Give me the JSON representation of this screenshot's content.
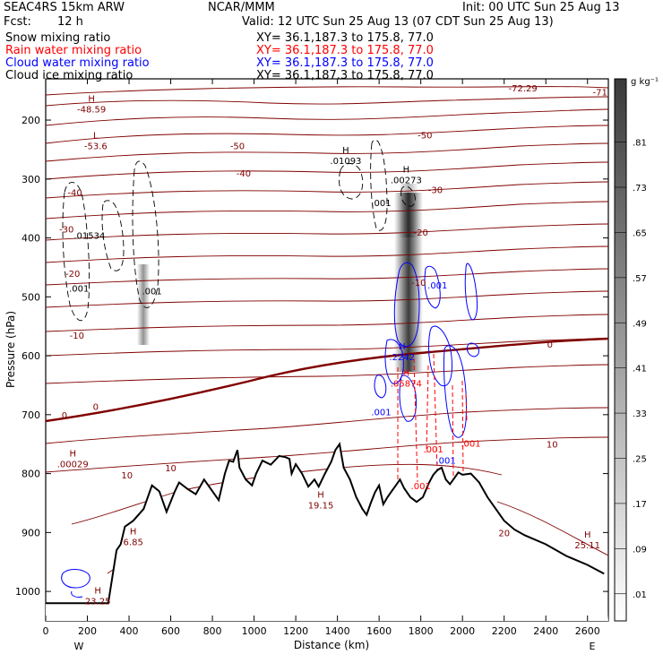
{
  "header": {
    "model": "SEAC4RS 15km ARW",
    "org": "NCAR/MMM",
    "init": "Init: 00 UTC Sun 25 Aug 13",
    "fcst_label": "Fcst:",
    "fcst_value": "12 h",
    "valid": "Valid: 12 UTC Sun 25 Aug 13 (07 CDT Sun 25 Aug 13)"
  },
  "fields": [
    {
      "label": "Snow mixing ratio",
      "xy": "XY=  36.1,187.3 to 175.8, 77.0",
      "color": "#000000"
    },
    {
      "label": "Rain water mixing ratio",
      "xy": "XY=  36.1,187.3 to 175.8, 77.0",
      "color": "#ff0000"
    },
    {
      "label": "Cloud water mixing ratio",
      "xy": "XY=  36.1,187.3 to 175.8, 77.0",
      "color": "#0000ff"
    },
    {
      "label": "Cloud ice mixing ratio",
      "xy": "XY=  36.1,187.3 to 175.8, 77.0",
      "color": "#000000"
    }
  ],
  "colorbar": {
    "unit": "g kg⁻¹",
    "levels": [
      ".01",
      ".09",
      ".17",
      ".25",
      ".33",
      ".41",
      ".49",
      ".57",
      ".65",
      ".73",
      ".81"
    ]
  },
  "chart_data": {
    "type": "contour cross-section",
    "xlabel": "Distance (km)",
    "ylabel": "Pressure (hPa)",
    "xlim": [
      0,
      2700
    ],
    "ylim": [
      1050,
      130
    ],
    "x_ticks": [
      0,
      200,
      400,
      600,
      800,
      1000,
      1200,
      1400,
      1600,
      1800,
      2000,
      2200,
      2400,
      2600
    ],
    "y_ticks": [
      200,
      300,
      400,
      500,
      600,
      700,
      800,
      900,
      1000
    ],
    "end_labels": {
      "left": "W",
      "right": "E"
    },
    "terrain_surface": [
      [
        0,
        1020
      ],
      [
        300,
        1020
      ],
      [
        340,
        930
      ],
      [
        360,
        920
      ],
      [
        380,
        890
      ],
      [
        420,
        880
      ],
      [
        470,
        860
      ],
      [
        510,
        820
      ],
      [
        545,
        830
      ],
      [
        580,
        865
      ],
      [
        620,
        830
      ],
      [
        640,
        815
      ],
      [
        680,
        826
      ],
      [
        720,
        835
      ],
      [
        760,
        810
      ],
      [
        800,
        830
      ],
      [
        830,
        845
      ],
      [
        860,
        800
      ],
      [
        880,
        778
      ],
      [
        900,
        780
      ],
      [
        920,
        760
      ],
      [
        930,
        790
      ],
      [
        960,
        810
      ],
      [
        990,
        820
      ],
      [
        1010,
        800
      ],
      [
        1040,
        778
      ],
      [
        1080,
        785
      ],
      [
        1120,
        770
      ],
      [
        1150,
        772
      ],
      [
        1170,
        775
      ],
      [
        1180,
        800
      ],
      [
        1200,
        784
      ],
      [
        1230,
        800
      ],
      [
        1260,
        822
      ],
      [
        1290,
        810
      ],
      [
        1310,
        822
      ],
      [
        1340,
        800
      ],
      [
        1370,
        780
      ],
      [
        1390,
        760
      ],
      [
        1410,
        750
      ],
      [
        1430,
        790
      ],
      [
        1460,
        810
      ],
      [
        1490,
        840
      ],
      [
        1520,
        860
      ],
      [
        1540,
        870
      ],
      [
        1560,
        850
      ],
      [
        1580,
        832
      ],
      [
        1600,
        820
      ],
      [
        1620,
        852
      ],
      [
        1640,
        840
      ],
      [
        1660,
        830
      ],
      [
        1680,
        820
      ],
      [
        1700,
        810
      ],
      [
        1720,
        825
      ],
      [
        1750,
        840
      ],
      [
        1780,
        848
      ],
      [
        1810,
        840
      ],
      [
        1840,
        815
      ],
      [
        1860,
        802
      ],
      [
        1880,
        794
      ],
      [
        1900,
        790
      ],
      [
        1920,
        810
      ],
      [
        1940,
        818
      ],
      [
        1960,
        808
      ],
      [
        1980,
        798
      ],
      [
        2000,
        802
      ],
      [
        2040,
        800
      ],
      [
        2080,
        815
      ],
      [
        2120,
        840
      ],
      [
        2160,
        860
      ],
      [
        2200,
        880
      ],
      [
        2250,
        895
      ],
      [
        2300,
        905
      ],
      [
        2400,
        920
      ],
      [
        2500,
        940
      ],
      [
        2600,
        955
      ],
      [
        2680,
        970
      ]
    ],
    "temperature_contour_labels": [
      {
        "x": 150,
        "p": 565,
        "text": "-10",
        "color": "#800000"
      },
      {
        "x": 130,
        "p": 460,
        "text": "-20",
        "color": "#800000"
      },
      {
        "x": 100,
        "p": 385,
        "text": "-30",
        "color": "#800000"
      },
      {
        "x": 140,
        "p": 322,
        "text": "-40",
        "color": "#800000"
      },
      {
        "x": 950,
        "p": 290,
        "text": "-40",
        "color": "#800000"
      },
      {
        "x": 920,
        "p": 243,
        "text": "-50",
        "color": "#800000"
      },
      {
        "x": 1820,
        "p": 225,
        "text": "-50",
        "color": "#800000"
      },
      {
        "x": 1870,
        "p": 318,
        "text": "-30",
        "color": "#800000"
      },
      {
        "x": 1800,
        "p": 390,
        "text": "-20",
        "color": "#800000"
      },
      {
        "x": 1790,
        "p": 475,
        "text": "-10",
        "color": "#800000"
      },
      {
        "x": 2420,
        "p": 580,
        "text": "0",
        "color": "#800000"
      },
      {
        "x": 240,
        "p": 686,
        "text": "0",
        "color": "#800000"
      },
      {
        "x": 90,
        "p": 700,
        "text": "0",
        "color": "#800000"
      },
      {
        "x": 2430,
        "p": 750,
        "text": "10",
        "color": "#800000"
      },
      {
        "x": 390,
        "p": 802,
        "text": "10",
        "color": "#800000"
      },
      {
        "x": 600,
        "p": 790,
        "text": "10",
        "color": "#800000"
      },
      {
        "x": 2200,
        "p": 900,
        "text": "20",
        "color": "#800000"
      },
      {
        "x": 2290,
        "p": 145,
        "text": "-72.29",
        "color": "#800000"
      },
      {
        "x": 2660,
        "p": 152,
        "text": "-71",
        "color": "#800000"
      }
    ],
    "extrema_labels": [
      {
        "x": 220,
        "p": 178,
        "mark": "H",
        "value": "-48.59",
        "color": "#800000"
      },
      {
        "x": 240,
        "p": 240,
        "mark": "L",
        "value": "-53.6",
        "color": "#800000"
      },
      {
        "x": 130,
        "p": 780,
        "mark": "H",
        "value": ".00029",
        "color": "#800000"
      },
      {
        "x": 1320,
        "p": 850,
        "mark": "H",
        "value": "19.15",
        "color": "#800000"
      },
      {
        "x": 2600,
        "p": 918,
        "mark": "H",
        "value": "25.11",
        "color": "#800000"
      },
      {
        "x": 420,
        "p": 912,
        "mark": "H",
        "value": "6.85",
        "color": "#800000"
      },
      {
        "x": 250,
        "p": 1013,
        "mark": "H",
        "value": "23.25",
        "color": "#800000"
      },
      {
        "x": 1440,
        "p": 265,
        "mark": "H",
        "value": ".01093",
        "color": "#000000"
      },
      {
        "x": 1730,
        "p": 298,
        "mark": "H",
        "value": ".00273",
        "color": "#000000"
      },
      {
        "x": 1710,
        "p": 598,
        "mark": "H",
        "value": ".2242",
        "color": "#0000ff"
      },
      {
        "x": 1730,
        "p": 643,
        "mark": "H",
        "value": ".05874",
        "color": "#ff0000"
      }
    ],
    "contour_value_labels": [
      {
        "x": 210,
        "p": 395,
        "text": ".01534",
        "color": "#000000"
      },
      {
        "x": 160,
        "p": 485,
        "text": ".001",
        "color": "#000000"
      },
      {
        "x": 510,
        "p": 490,
        "text": ".001",
        "color": "#000000"
      },
      {
        "x": 1610,
        "p": 340,
        "text": ".001",
        "color": "#000000"
      },
      {
        "x": 1880,
        "p": 480,
        "text": ".001",
        "color": "#0000ff"
      },
      {
        "x": 1610,
        "p": 695,
        "text": ".001",
        "color": "#0000ff"
      },
      {
        "x": 1920,
        "p": 777,
        "text": ".001",
        "color": "#0000ff"
      },
      {
        "x": 1860,
        "p": 758,
        "text": ".001",
        "color": "#ff0000"
      },
      {
        "x": 2040,
        "p": 748,
        "text": ".001",
        "color": "#ff0000"
      },
      {
        "x": 1800,
        "p": 820,
        "text": ".001",
        "color": "#ff0000"
      }
    ]
  }
}
